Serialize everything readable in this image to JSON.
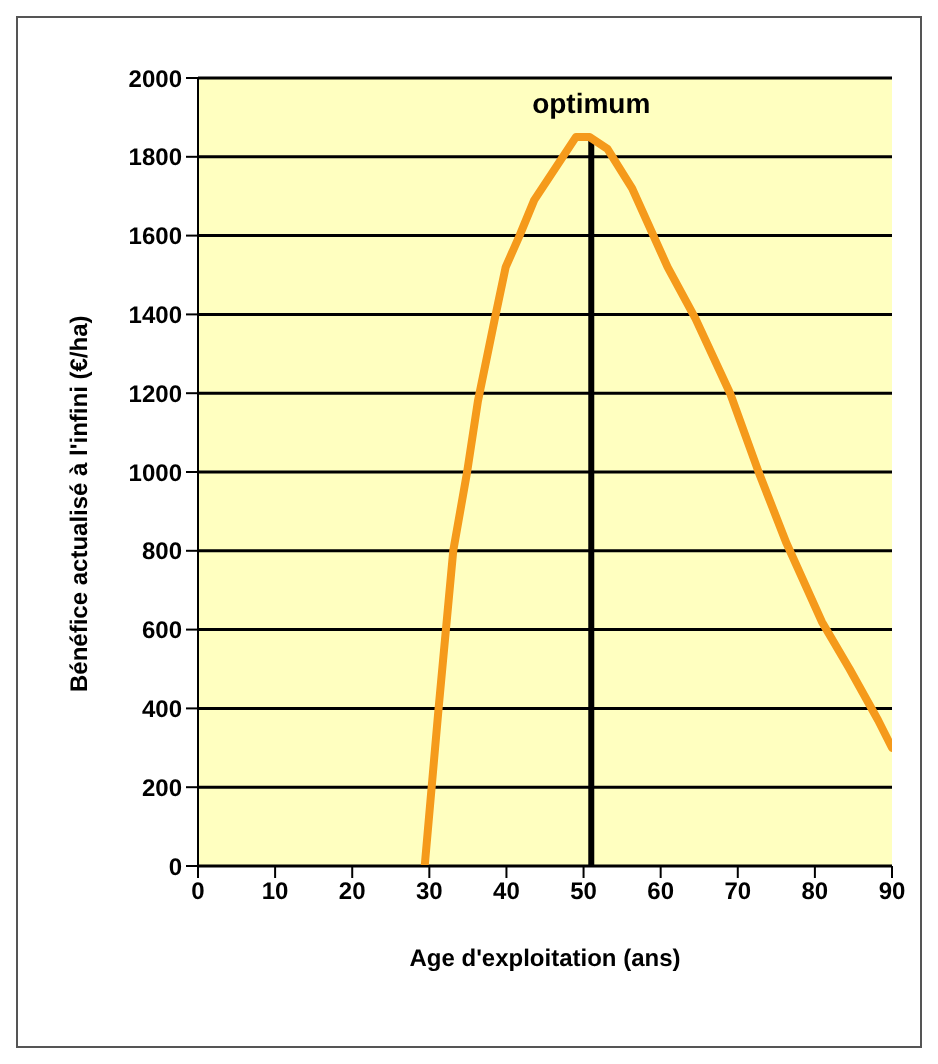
{
  "chart_data": {
    "type": "line",
    "xlabel": "Age d'exploitation (ans)",
    "ylabel": "Bénéfice actualisé à l'infini (€/ha)",
    "series": [
      {
        "color": "#f59a1b",
        "x": [
          29.4,
          31.2,
          33.1,
          34.9,
          36.3,
          38.5,
          39.9,
          41.7,
          43.6,
          46.3,
          49.0,
          50.8,
          53.1,
          56.3,
          60.9,
          64.5,
          69.0,
          72.7,
          76.3,
          80.9,
          84.5,
          88.2,
          90
        ],
        "values": [
          0,
          400,
          800,
          1000,
          1180,
          1390,
          1520,
          1600,
          1690,
          1770,
          1850,
          1850,
          1820,
          1720,
          1520,
          1390,
          1200,
          1000,
          820,
          620,
          500,
          370,
          300
        ]
      }
    ],
    "xlim": [
      0,
      90
    ],
    "xticks": [
      0,
      10,
      20,
      30,
      40,
      50,
      60,
      70,
      80,
      90
    ],
    "ylim": [
      0,
      2000
    ],
    "yticks": [
      0,
      200,
      400,
      600,
      800,
      1000,
      1200,
      1400,
      1600,
      1800,
      2000
    ],
    "grid": "y",
    "marker": "none",
    "line_style": "solid",
    "ref_lines": [
      {
        "axis": "x",
        "value": 51,
        "label": "optimum",
        "color": "#000000"
      }
    ]
  }
}
